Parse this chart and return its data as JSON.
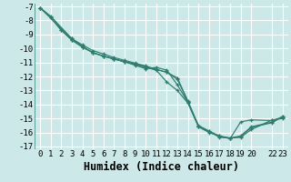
{
  "xlabel": "Humidex (Indice chaleur)",
  "bg_color": "#cde8e8",
  "grid_color": "#ffffff",
  "line_color": "#2e7d6e",
  "xlim": [
    -0.5,
    23.5
  ],
  "ylim": [
    -17.2,
    -6.8
  ],
  "xticks": [
    0,
    1,
    2,
    3,
    4,
    5,
    6,
    7,
    8,
    9,
    10,
    11,
    12,
    13,
    14,
    15,
    16,
    17,
    18,
    19,
    20,
    22,
    23
  ],
  "yticks": [
    -7,
    -8,
    -9,
    -10,
    -11,
    -12,
    -13,
    -14,
    -15,
    -16,
    -17
  ],
  "lines": [
    {
      "x": [
        0,
        1,
        2,
        3,
        4,
        5,
        6,
        7,
        8,
        9,
        10,
        11,
        12,
        13,
        14,
        15,
        16,
        17,
        18,
        19,
        20,
        22,
        23
      ],
      "y": [
        -7.1,
        -7.8,
        -8.7,
        -9.4,
        -9.9,
        -10.3,
        -10.55,
        -10.75,
        -10.95,
        -11.15,
        -11.35,
        -11.55,
        -12.4,
        -13.0,
        -13.9,
        -15.55,
        -15.9,
        -16.35,
        -16.4,
        -16.35,
        -15.8,
        -15.1,
        -15.0
      ]
    },
    {
      "x": [
        0,
        1,
        2,
        3,
        4,
        5,
        6,
        7,
        8,
        9,
        10,
        11,
        12,
        13,
        14,
        15,
        16,
        17,
        18,
        19,
        20,
        22,
        23
      ],
      "y": [
        -7.1,
        -7.8,
        -8.7,
        -9.4,
        -9.9,
        -10.3,
        -10.55,
        -10.75,
        -10.95,
        -11.2,
        -11.45,
        -11.35,
        -11.55,
        -12.6,
        -13.85,
        -15.6,
        -16.0,
        -16.25,
        -16.45,
        -15.25,
        -15.1,
        -15.15,
        -14.9
      ]
    },
    {
      "x": [
        0,
        1,
        3,
        4,
        5,
        6,
        7,
        8,
        9,
        10,
        11,
        12,
        13,
        14,
        15,
        16,
        17,
        18,
        19,
        20,
        22,
        23
      ],
      "y": [
        -7.1,
        -7.7,
        -9.3,
        -9.85,
        -10.3,
        -10.55,
        -10.75,
        -10.95,
        -11.1,
        -11.3,
        -11.5,
        -11.7,
        -12.2,
        -13.8,
        -15.55,
        -15.95,
        -16.3,
        -16.4,
        -16.25,
        -15.6,
        -15.25,
        -14.85
      ]
    },
    {
      "x": [
        0,
        3,
        4,
        5,
        6,
        7,
        8,
        9,
        10,
        11,
        12,
        13,
        14,
        15,
        16,
        17,
        18,
        19,
        20,
        22,
        23
      ],
      "y": [
        -7.1,
        -9.3,
        -9.75,
        -10.15,
        -10.4,
        -10.65,
        -10.85,
        -11.05,
        -11.25,
        -11.5,
        -11.7,
        -12.1,
        -13.75,
        -15.5,
        -15.9,
        -16.25,
        -16.4,
        -16.3,
        -15.65,
        -15.3,
        -14.85
      ]
    }
  ],
  "font_family": "monospace",
  "tick_fontsize": 6.5,
  "label_fontsize": 8.5
}
